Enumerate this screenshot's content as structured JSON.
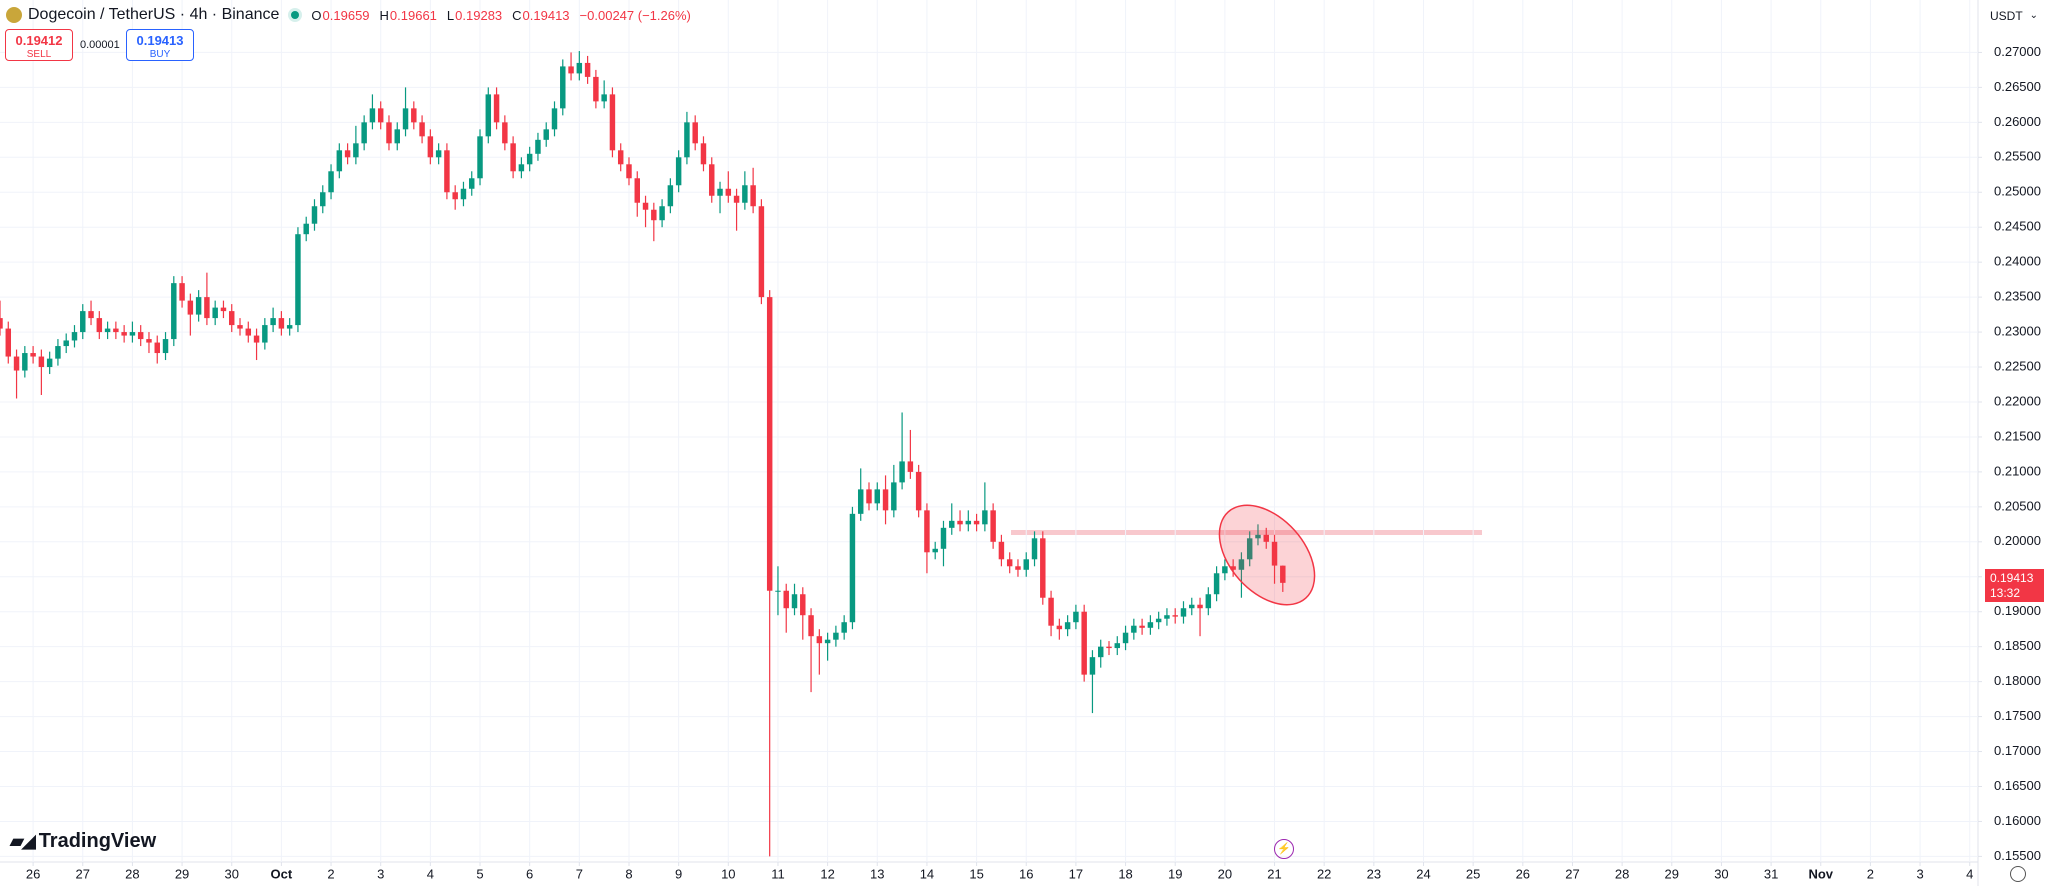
{
  "chart_data": {
    "type": "candlestick",
    "title": "Dogecoin / TetherUS · 4h · Binance",
    "legend": {
      "open_label": "O",
      "open": 0.19659,
      "high_label": "H",
      "high": 0.19661,
      "low_label": "L",
      "low": 0.19283,
      "close_label": "C",
      "close": 0.19413,
      "change": "−0.00247 (−1.26%)"
    },
    "trade": {
      "sell_price": 0.19412,
      "sell_label": "SELL",
      "spread": 1e-05,
      "buy_price": 0.19413,
      "buy_label": "BUY"
    },
    "currency": "USDT",
    "price_tag": {
      "price": 0.19413,
      "countdown": "13:32"
    },
    "brand": "TradingView",
    "up_color": "#089981",
    "down_color": "#f23645",
    "grid": true,
    "xlim": [
      0,
      239
    ],
    "ylim": [
      0.1542,
      0.2775
    ],
    "open": [
      0.232,
      0.2305,
      0.2265,
      0.2245,
      0.227,
      0.2265,
      0.225,
      0.2262,
      0.228,
      0.2288,
      0.23,
      0.233,
      0.232,
      0.23,
      0.2305,
      0.23,
      0.2295,
      0.23,
      0.229,
      0.2285,
      0.227,
      0.229,
      0.237,
      0.2345,
      0.2325,
      0.235,
      0.232,
      0.2335,
      0.233,
      0.231,
      0.2305,
      0.2295,
      0.2285,
      0.231,
      0.232,
      0.2305,
      0.231,
      0.244,
      0.2455,
      0.248,
      0.25,
      0.253,
      0.256,
      0.255,
      0.257,
      0.26,
      0.262,
      0.26,
      0.257,
      0.259,
      0.262,
      0.26,
      0.258,
      0.255,
      0.256,
      0.25,
      0.249,
      0.2505,
      0.252,
      0.258,
      0.264,
      0.26,
      0.257,
      0.253,
      0.254,
      0.2555,
      0.2575,
      0.259,
      0.262,
      0.268,
      0.267,
      0.2685,
      0.2665,
      0.263,
      0.264,
      0.256,
      0.254,
      0.252,
      0.2485,
      0.2475,
      0.246,
      0.248,
      0.251,
      0.255,
      0.26,
      0.257,
      0.254,
      0.2495,
      0.2505,
      0.2495,
      0.2485,
      0.251,
      0.248,
      0.235,
      0.193,
      0.193,
      0.1905,
      0.1925,
      0.1895,
      0.1865,
      0.1855,
      0.186,
      0.187,
      0.1885,
      0.204,
      0.2075,
      0.2055,
      0.2075,
      0.2045,
      0.2085,
      0.2115,
      0.21,
      0.2045,
      0.1985,
      0.199,
      0.202,
      0.203,
      0.2025,
      0.203,
      0.2025,
      0.2045,
      0.2,
      0.1975,
      0.1965,
      0.196,
      0.1975,
      0.2005,
      0.192,
      0.188,
      0.1875,
      0.1885,
      0.19,
      0.181,
      0.1835,
      0.185,
      0.1848,
      0.1855,
      0.187,
      0.188,
      0.1877,
      0.1885,
      0.189,
      0.1895,
      0.1893,
      0.1905,
      0.191,
      0.1905,
      0.1925,
      0.1955,
      0.1965,
      0.196,
      0.1975,
      0.2005,
      0.201,
      0.2,
      0.19659
    ],
    "high": [
      0.2345,
      0.2315,
      0.2275,
      0.228,
      0.228,
      0.2275,
      0.2272,
      0.229,
      0.2298,
      0.231,
      0.234,
      0.2345,
      0.233,
      0.2315,
      0.2315,
      0.231,
      0.2315,
      0.231,
      0.23,
      0.2295,
      0.23,
      0.238,
      0.238,
      0.2355,
      0.236,
      0.2385,
      0.2345,
      0.2345,
      0.234,
      0.232,
      0.2315,
      0.2305,
      0.232,
      0.2335,
      0.233,
      0.232,
      0.245,
      0.2465,
      0.249,
      0.251,
      0.254,
      0.257,
      0.257,
      0.2595,
      0.261,
      0.264,
      0.263,
      0.261,
      0.26,
      0.265,
      0.263,
      0.261,
      0.259,
      0.257,
      0.257,
      0.251,
      0.2515,
      0.253,
      0.259,
      0.265,
      0.265,
      0.261,
      0.258,
      0.255,
      0.2565,
      0.2585,
      0.26,
      0.263,
      0.269,
      0.27,
      0.2702,
      0.2695,
      0.2675,
      0.266,
      0.265,
      0.257,
      0.255,
      0.253,
      0.2495,
      0.2485,
      0.249,
      0.252,
      0.256,
      0.2615,
      0.261,
      0.258,
      0.255,
      0.2515,
      0.253,
      0.2505,
      0.253,
      0.2535,
      0.249,
      0.236,
      0.1965,
      0.194,
      0.194,
      0.1935,
      0.1905,
      0.1875,
      0.187,
      0.188,
      0.1895,
      0.205,
      0.2105,
      0.2085,
      0.2085,
      0.2095,
      0.211,
      0.2185,
      0.216,
      0.211,
      0.2055,
      0.2,
      0.203,
      0.2055,
      0.2045,
      0.2045,
      0.204,
      0.2085,
      0.2055,
      0.201,
      0.1985,
      0.1975,
      0.1985,
      0.2015,
      0.2015,
      0.193,
      0.189,
      0.1895,
      0.191,
      0.191,
      0.1845,
      0.186,
      0.1858,
      0.1865,
      0.188,
      0.189,
      0.189,
      0.1895,
      0.19,
      0.1905,
      0.1905,
      0.1915,
      0.192,
      0.192,
      0.1935,
      0.1965,
      0.1975,
      0.1975,
      0.1985,
      0.2015,
      0.2025,
      0.202,
      0.201,
      0.19661
    ],
    "low": [
      0.2295,
      0.2255,
      0.2205,
      0.2235,
      0.2255,
      0.221,
      0.224,
      0.2252,
      0.227,
      0.2278,
      0.229,
      0.231,
      0.229,
      0.229,
      0.229,
      0.2285,
      0.2285,
      0.228,
      0.227,
      0.2255,
      0.226,
      0.228,
      0.2335,
      0.2295,
      0.2315,
      0.231,
      0.231,
      0.232,
      0.23,
      0.2295,
      0.2285,
      0.226,
      0.2275,
      0.23,
      0.2295,
      0.2295,
      0.23,
      0.243,
      0.2445,
      0.247,
      0.249,
      0.252,
      0.254,
      0.254,
      0.256,
      0.259,
      0.259,
      0.256,
      0.256,
      0.258,
      0.259,
      0.257,
      0.254,
      0.254,
      0.249,
      0.2475,
      0.248,
      0.2495,
      0.251,
      0.257,
      0.259,
      0.256,
      0.252,
      0.252,
      0.253,
      0.2545,
      0.2565,
      0.258,
      0.261,
      0.266,
      0.266,
      0.2655,
      0.262,
      0.262,
      0.255,
      0.253,
      0.251,
      0.2465,
      0.245,
      0.243,
      0.245,
      0.247,
      0.25,
      0.254,
      0.256,
      0.253,
      0.2485,
      0.247,
      0.2485,
      0.2445,
      0.2475,
      0.247,
      0.234,
      0.155,
      0.1895,
      0.187,
      0.1895,
      0.186,
      0.1785,
      0.181,
      0.183,
      0.185,
      0.186,
      0.1875,
      0.203,
      0.2045,
      0.2045,
      0.2025,
      0.2035,
      0.2075,
      0.209,
      0.2035,
      0.1955,
      0.1975,
      0.1965,
      0.201,
      0.2015,
      0.2015,
      0.2015,
      0.2015,
      0.199,
      0.1965,
      0.1955,
      0.195,
      0.195,
      0.1965,
      0.191,
      0.1865,
      0.186,
      0.1865,
      0.1875,
      0.18,
      0.1755,
      0.182,
      0.1838,
      0.1838,
      0.1845,
      0.186,
      0.1867,
      0.1867,
      0.1875,
      0.188,
      0.1883,
      0.1883,
      0.1895,
      0.1865,
      0.1895,
      0.1915,
      0.1945,
      0.195,
      0.192,
      0.1965,
      0.1995,
      0.199,
      0.194,
      0.19283
    ],
    "close": [
      0.2305,
      0.2265,
      0.2245,
      0.227,
      0.2265,
      0.225,
      0.2262,
      0.228,
      0.2288,
      0.23,
      0.233,
      0.232,
      0.23,
      0.2305,
      0.23,
      0.2295,
      0.23,
      0.229,
      0.2285,
      0.227,
      0.229,
      0.237,
      0.2345,
      0.2325,
      0.235,
      0.232,
      0.2335,
      0.233,
      0.231,
      0.2305,
      0.2295,
      0.2285,
      0.231,
      0.232,
      0.2305,
      0.231,
      0.244,
      0.2455,
      0.248,
      0.25,
      0.253,
      0.256,
      0.255,
      0.257,
      0.26,
      0.262,
      0.26,
      0.257,
      0.259,
      0.262,
      0.26,
      0.258,
      0.255,
      0.256,
      0.25,
      0.249,
      0.2505,
      0.252,
      0.258,
      0.264,
      0.26,
      0.257,
      0.253,
      0.254,
      0.2555,
      0.2575,
      0.259,
      0.262,
      0.268,
      0.267,
      0.2685,
      0.2665,
      0.263,
      0.264,
      0.256,
      0.254,
      0.252,
      0.2485,
      0.2475,
      0.246,
      0.248,
      0.251,
      0.255,
      0.26,
      0.257,
      0.254,
      0.2495,
      0.2505,
      0.2495,
      0.2485,
      0.251,
      0.248,
      0.235,
      0.193,
      0.193,
      0.1905,
      0.1925,
      0.1895,
      0.1865,
      0.1855,
      0.186,
      0.187,
      0.1885,
      0.204,
      0.2075,
      0.2055,
      0.2075,
      0.2045,
      0.2085,
      0.2115,
      0.21,
      0.2045,
      0.1985,
      0.199,
      0.202,
      0.203,
      0.2025,
      0.203,
      0.2025,
      0.2045,
      0.2,
      0.1975,
      0.1965,
      0.196,
      0.1975,
      0.2005,
      0.192,
      0.188,
      0.1875,
      0.1885,
      0.19,
      0.181,
      0.1835,
      0.185,
      0.1848,
      0.1855,
      0.187,
      0.188,
      0.1877,
      0.1885,
      0.189,
      0.1895,
      0.1893,
      0.1905,
      0.191,
      0.1905,
      0.1925,
      0.1955,
      0.1965,
      0.196,
      0.1975,
      0.2005,
      0.201,
      0.2,
      0.1966,
      0.19413
    ],
    "yticks": [
      {
        "value": 0.155,
        "label": "0.15500"
      },
      {
        "value": 0.16,
        "label": "0.16000"
      },
      {
        "value": 0.165,
        "label": "0.16500"
      },
      {
        "value": 0.17,
        "label": "0.17000"
      },
      {
        "value": 0.175,
        "label": "0.17500"
      },
      {
        "value": 0.18,
        "label": "0.18000"
      },
      {
        "value": 0.185,
        "label": "0.18500"
      },
      {
        "value": 0.19,
        "label": "0.19000"
      },
      {
        "value": 0.195,
        "label": "0.19500"
      },
      {
        "value": 0.2,
        "label": "0.20000"
      },
      {
        "value": 0.205,
        "label": "0.20500"
      },
      {
        "value": 0.21,
        "label": "0.21000"
      },
      {
        "value": 0.215,
        "label": "0.21500"
      },
      {
        "value": 0.22,
        "label": "0.22000"
      },
      {
        "value": 0.225,
        "label": "0.22500"
      },
      {
        "value": 0.23,
        "label": "0.23000"
      },
      {
        "value": 0.235,
        "label": "0.23500"
      },
      {
        "value": 0.24,
        "label": "0.24000"
      },
      {
        "value": 0.245,
        "label": "0.24500"
      },
      {
        "value": 0.25,
        "label": "0.25000"
      },
      {
        "value": 0.255,
        "label": "0.25500"
      },
      {
        "value": 0.26,
        "label": "0.26000"
      },
      {
        "value": 0.265,
        "label": "0.26500"
      },
      {
        "value": 0.27,
        "label": "0.27000"
      }
    ],
    "xticks": [
      {
        "value": 4,
        "label": "26"
      },
      {
        "value": 10,
        "label": "27"
      },
      {
        "value": 16,
        "label": "28"
      },
      {
        "value": 22,
        "label": "29"
      },
      {
        "value": 28,
        "label": "30"
      },
      {
        "value": 34,
        "label": "Oct"
      },
      {
        "value": 40,
        "label": "2"
      },
      {
        "value": 46,
        "label": "3"
      },
      {
        "value": 52,
        "label": "4"
      },
      {
        "value": 58,
        "label": "5"
      },
      {
        "value": 64,
        "label": "6"
      },
      {
        "value": 70,
        "label": "7"
      },
      {
        "value": 76,
        "label": "8"
      },
      {
        "value": 82,
        "label": "9"
      },
      {
        "value": 88,
        "label": "10"
      },
      {
        "value": 94,
        "label": "11"
      },
      {
        "value": 100,
        "label": "12"
      },
      {
        "value": 106,
        "label": "13"
      },
      {
        "value": 112,
        "label": "14"
      },
      {
        "value": 118,
        "label": "15"
      },
      {
        "value": 124,
        "label": "16"
      },
      {
        "value": 130,
        "label": "17"
      },
      {
        "value": 136,
        "label": "18"
      },
      {
        "value": 142,
        "label": "19"
      },
      {
        "value": 148,
        "label": "20"
      },
      {
        "value": 154,
        "label": "21"
      },
      {
        "value": 160,
        "label": "22"
      },
      {
        "value": 166,
        "label": "23"
      },
      {
        "value": 172,
        "label": "24"
      },
      {
        "value": 178,
        "label": "25"
      },
      {
        "value": 184,
        "label": "26"
      },
      {
        "value": 190,
        "label": "27"
      },
      {
        "value": 196,
        "label": "28"
      },
      {
        "value": 202,
        "label": "29"
      },
      {
        "value": 208,
        "label": "30"
      },
      {
        "value": 214,
        "label": "31"
      },
      {
        "value": 220,
        "label": "Nov"
      },
      {
        "value": 226,
        "label": "2"
      },
      {
        "value": 232,
        "label": "3"
      },
      {
        "value": 238,
        "label": "4"
      }
    ]
  }
}
